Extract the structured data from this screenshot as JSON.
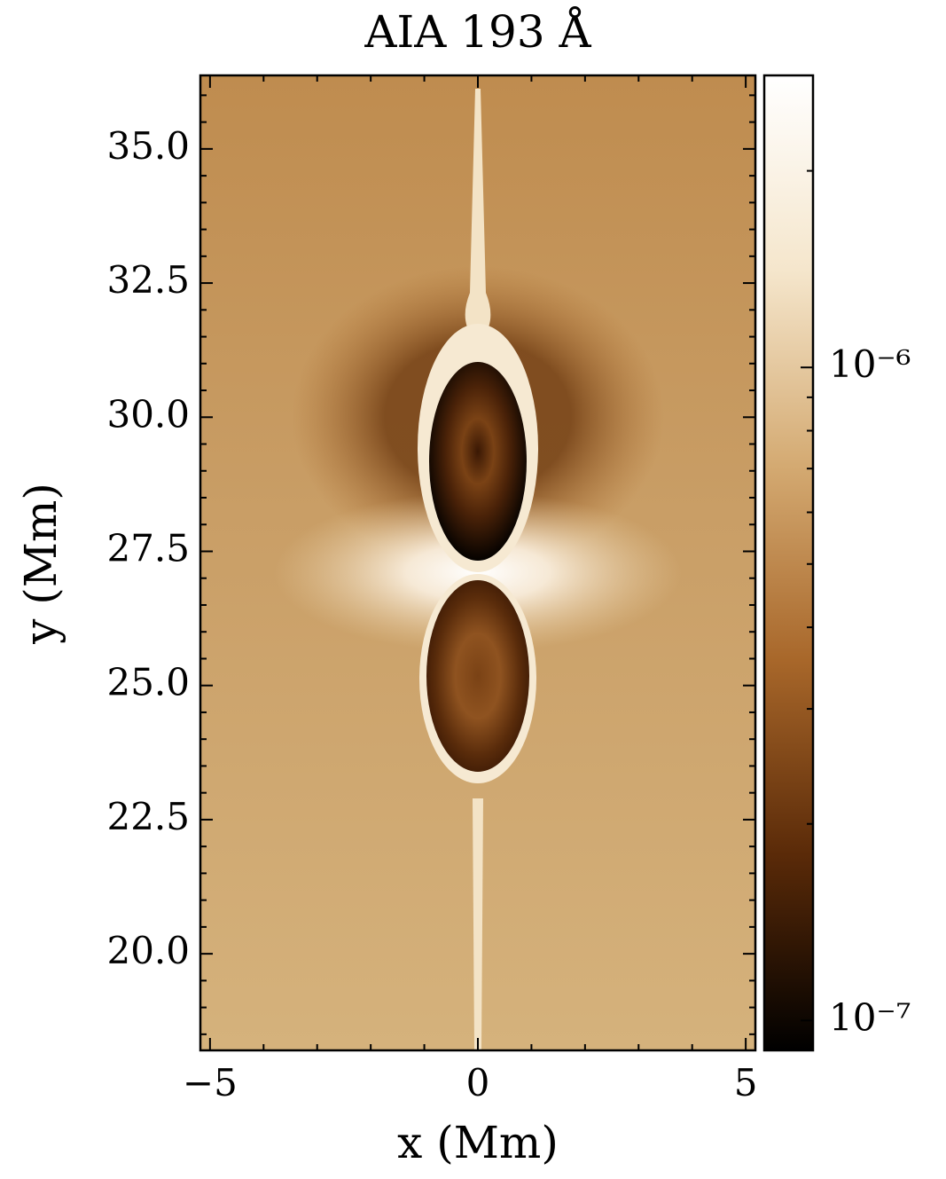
{
  "chart_data": {
    "type": "image",
    "title": "AIA 193 Å",
    "xlabel": "x (Mm)",
    "ylabel": "y (Mm)",
    "xlim": [
      -5.18,
      5.18
    ],
    "ylim": [
      18.2,
      36.37
    ],
    "xticks": [
      {
        "value": -5,
        "label": "−5"
      },
      0,
      5
    ],
    "xminor": [
      -4,
      -3,
      -2,
      -1,
      1,
      2,
      3,
      4
    ],
    "yticks": [
      {
        "value": 20,
        "label": "20.0"
      },
      22.5,
      {
        "value": 25,
        "label": "25.0"
      },
      27.5,
      {
        "value": 30,
        "label": "30.0"
      },
      32.5,
      {
        "value": 35,
        "label": "35.0"
      }
    ],
    "yminor": [
      18.5,
      19,
      19.5,
      20.5,
      21,
      21.5,
      22,
      23,
      23.5,
      24,
      24.5,
      25.5,
      26,
      26.5,
      27,
      28,
      28.5,
      29,
      29.5,
      30.5,
      31,
      31.5,
      32,
      33,
      33.5,
      34,
      34.5,
      35.5,
      36
    ],
    "tick_direction": "in",
    "colorbar": {
      "scale": "log",
      "lim": [
        9e-08,
        2.8e-06
      ],
      "ticks": [
        {
          "value": 1e-07,
          "label": "10⁻⁷"
        },
        {
          "value": 1e-06,
          "label": "10⁻⁶"
        }
      ],
      "minor": [
        2e-07,
        3e-07,
        4e-07,
        5e-07,
        6e-07,
        7e-07,
        8e-07,
        9e-07,
        2e-06
      ],
      "colormap": [
        "#000000",
        "#5a2a08",
        "#a8672a",
        "#d4aa72",
        "#f5e6cc",
        "#ffffff"
      ]
    }
  }
}
